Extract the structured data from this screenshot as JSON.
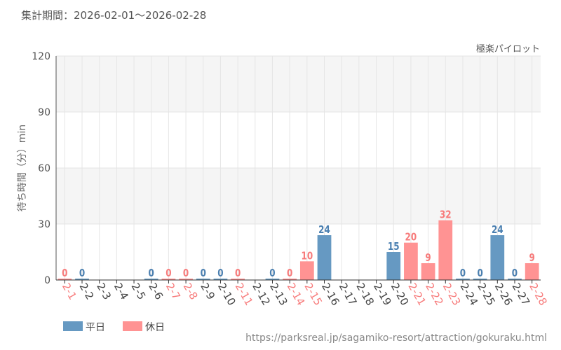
{
  "period_label": "集計期間：2026-02-01～2026-02-28",
  "attraction_name": "極楽パイロット",
  "source_url": "https://parksreal.jp/sagamiko-resort/attraction/gokuraku.html",
  "colors": {
    "weekday": "#6699c2",
    "holiday": "#ff9393",
    "weekday_text": "#4a7fb0",
    "holiday_text": "#f77b7b"
  },
  "chart_data": {
    "type": "bar",
    "title": "",
    "xlabel": "",
    "ylabel": "待ち時間（分）min",
    "ylim": [
      0,
      120
    ],
    "yticks": [
      0,
      30,
      60,
      90,
      120
    ],
    "grid": true,
    "legend_position": "bottom-left",
    "legend": [
      {
        "name": "平日",
        "key": "weekday"
      },
      {
        "name": "休日",
        "key": "holiday"
      }
    ],
    "categories": [
      "2-1",
      "2-2",
      "2-3",
      "2-4",
      "2-5",
      "2-6",
      "2-7",
      "2-8",
      "2-9",
      "2-10",
      "2-11",
      "2-12",
      "2-13",
      "2-14",
      "2-15",
      "2-16",
      "2-17",
      "2-18",
      "2-19",
      "2-20",
      "2-21",
      "2-22",
      "2-23",
      "2-24",
      "2-25",
      "2-26",
      "2-27",
      "2-28"
    ],
    "values": [
      0,
      0,
      null,
      null,
      null,
      0,
      0,
      0,
      0,
      0,
      0,
      null,
      0,
      0,
      10,
      24,
      null,
      null,
      null,
      15,
      20,
      9,
      32,
      0,
      0,
      24,
      0,
      9
    ],
    "holiday": [
      true,
      false,
      false,
      false,
      false,
      false,
      true,
      true,
      false,
      false,
      true,
      false,
      false,
      true,
      true,
      false,
      false,
      false,
      false,
      false,
      true,
      true,
      true,
      false,
      false,
      false,
      false,
      true
    ]
  }
}
